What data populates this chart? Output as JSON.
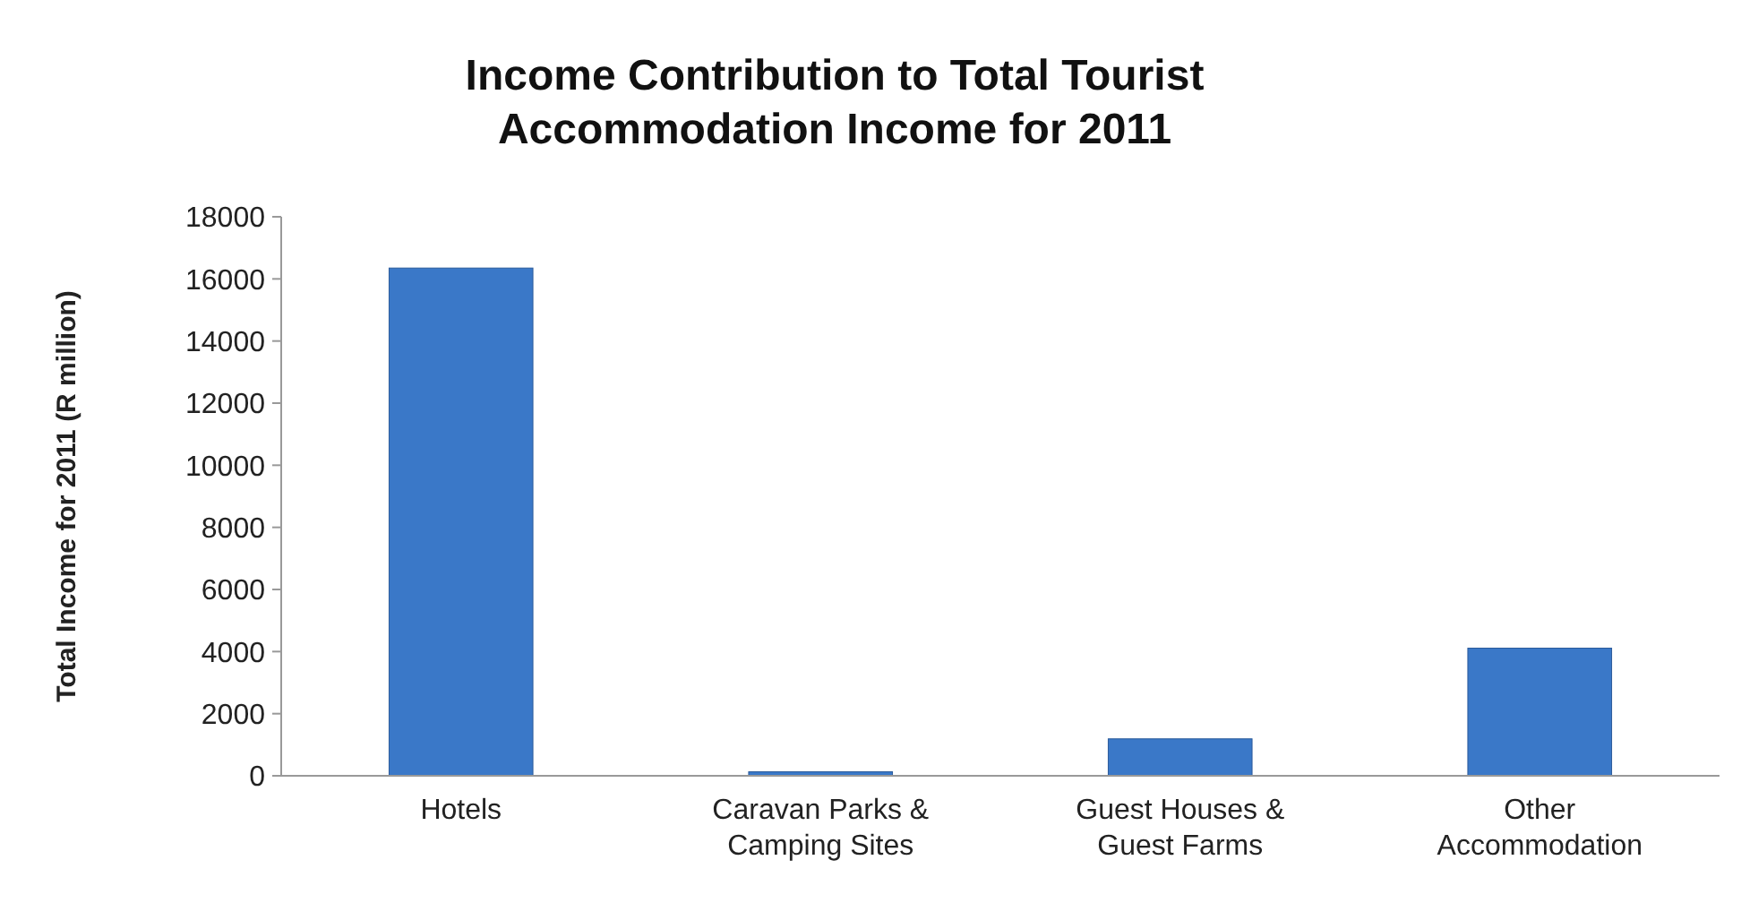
{
  "chart_data": {
    "type": "bar",
    "title": "Income Contribution to Total Tourist Accommodation Income for 2011",
    "ylabel": "Total Income for 2011 (R million)",
    "categories": [
      "Hotels",
      "Caravan Parks & Camping Sites",
      "Guest Houses & Guest Farms",
      "Other Accommodation"
    ],
    "values": [
      16350,
      130,
      1190,
      4110
    ],
    "color": "#3a78c8",
    "ylim": [
      0,
      18000
    ],
    "yticks": [
      0,
      2000,
      4000,
      6000,
      8000,
      10000,
      12000,
      14000,
      16000,
      18000
    ],
    "grid": false
  }
}
